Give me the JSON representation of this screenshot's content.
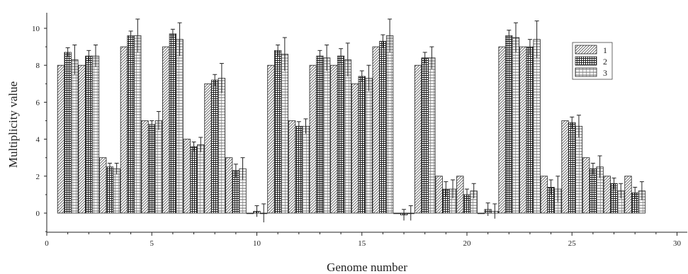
{
  "chart_data": {
    "type": "bar",
    "xlabel": "Genome number",
    "ylabel": "Multiplicity value",
    "xlim": [
      0,
      30.5
    ],
    "ylim": [
      -1,
      11
    ],
    "x_ticks": [
      0,
      5,
      10,
      15,
      20,
      25,
      30
    ],
    "y_ticks": [
      0,
      2,
      4,
      6,
      8,
      10
    ],
    "legend_position": "top-right",
    "grid": false,
    "series": [
      {
        "name": "1",
        "pattern": "diagonal-hatch",
        "x": [
          1,
          2,
          3,
          4,
          5,
          6,
          7,
          8,
          9,
          10,
          11,
          12,
          13,
          14,
          15,
          16,
          17,
          18,
          19,
          20,
          21,
          22,
          23,
          24,
          25,
          26,
          27,
          28
        ],
        "values": [
          8,
          8,
          3,
          9,
          5,
          9,
          4,
          7,
          3,
          0,
          8,
          5,
          8,
          8,
          7,
          9,
          0,
          8,
          2,
          2,
          0,
          9,
          9,
          2,
          5,
          3,
          2,
          2
        ],
        "errors": [
          0,
          0,
          0,
          0,
          0,
          0,
          0,
          0,
          0,
          0,
          0,
          0,
          0,
          0,
          0,
          0,
          0,
          0,
          0,
          0,
          0,
          0,
          0,
          0,
          0,
          0,
          0,
          0
        ]
      },
      {
        "name": "2",
        "pattern": "dense-grid",
        "x": [
          1,
          2,
          3,
          4,
          5,
          6,
          7,
          8,
          9,
          10,
          11,
          12,
          13,
          14,
          15,
          16,
          17,
          18,
          19,
          20,
          21,
          22,
          23,
          24,
          25,
          26,
          27,
          28
        ],
        "values": [
          8.7,
          8.5,
          2.5,
          9.6,
          4.8,
          9.7,
          3.6,
          7.2,
          2.3,
          0.1,
          8.8,
          4.7,
          8.5,
          8.5,
          7.4,
          9.3,
          -0.1,
          8.4,
          1.3,
          1.0,
          0.2,
          9.6,
          9.0,
          1.4,
          4.9,
          2.4,
          1.6,
          1.1
        ],
        "errors": [
          0.25,
          0.3,
          0.2,
          0.25,
          0.2,
          0.25,
          0.25,
          0.3,
          0.35,
          0.3,
          0.3,
          0.25,
          0.3,
          0.4,
          0.3,
          0.35,
          0.3,
          0.3,
          0.4,
          0.3,
          0.35,
          0.3,
          0.4,
          0.4,
          0.3,
          0.3,
          0.3,
          0.3
        ]
      },
      {
        "name": "3",
        "pattern": "horizontal-lines",
        "x": [
          1,
          2,
          3,
          4,
          5,
          6,
          7,
          8,
          9,
          10,
          11,
          12,
          13,
          14,
          15,
          16,
          17,
          18,
          19,
          20,
          21,
          22,
          23,
          24,
          25,
          26,
          27,
          28
        ],
        "values": [
          8.3,
          8.5,
          2.4,
          9.6,
          5.0,
          9.4,
          3.7,
          7.3,
          2.4,
          0.0,
          8.6,
          4.7,
          8.4,
          8.3,
          7.3,
          9.6,
          0.0,
          8.4,
          1.3,
          1.2,
          0.1,
          9.5,
          9.4,
          1.3,
          4.7,
          2.5,
          1.2,
          1.2
        ],
        "errors": [
          0.8,
          0.6,
          0.3,
          0.9,
          0.5,
          0.9,
          0.4,
          0.8,
          0.6,
          0.5,
          0.9,
          0.4,
          0.7,
          0.9,
          0.7,
          0.9,
          0.4,
          0.6,
          0.5,
          0.4,
          0.4,
          0.8,
          1.0,
          0.7,
          0.6,
          0.6,
          0.4,
          0.5
        ]
      }
    ]
  }
}
